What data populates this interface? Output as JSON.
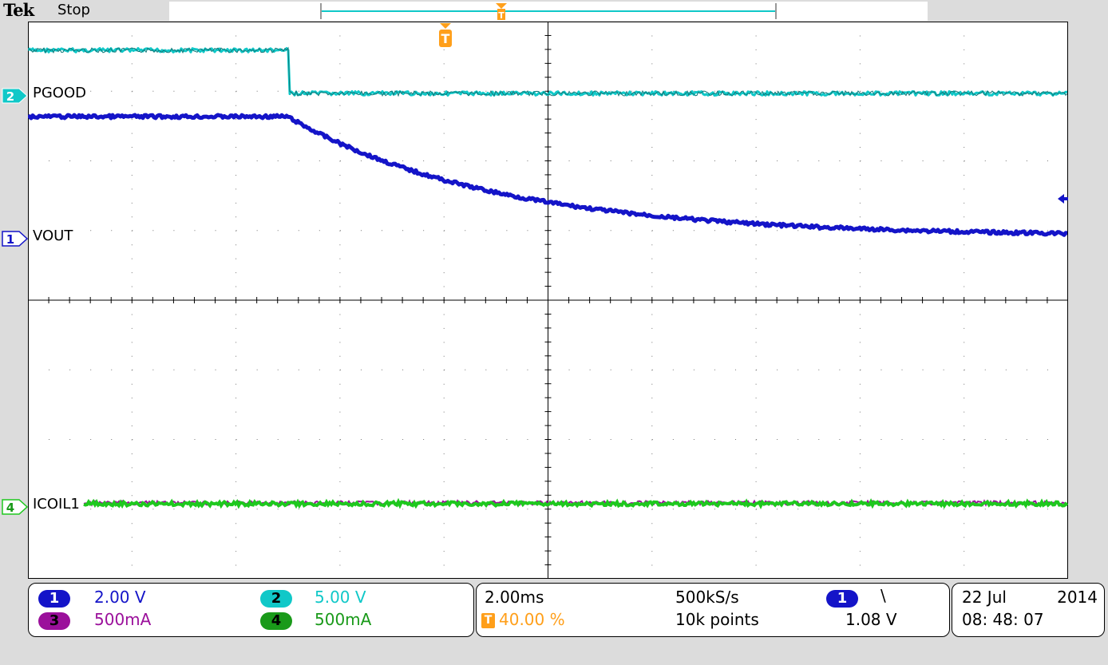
{
  "brand": "Tek",
  "acquisition_state": "Stop",
  "channels": [
    {
      "id": "1",
      "label": "VOUT",
      "color": "#1414c8",
      "scale": "2.00 V"
    },
    {
      "id": "2",
      "label": "PGOOD",
      "color": "#10c8c8",
      "scale": "5.00 V"
    },
    {
      "id": "3",
      "label": "",
      "color": "#9b109b",
      "scale": "500mA"
    },
    {
      "id": "4",
      "label": "ICOIL1",
      "color": "#1ec81e",
      "scale": "500mA"
    }
  ],
  "trigger": {
    "marker": "T",
    "position": "40.00 %",
    "color": "#ff9f1a",
    "source_channel": "1",
    "slope": "falling",
    "slope_symbol": "\\",
    "level": "1.08 V"
  },
  "horizontal": {
    "timebase": "2.00ms",
    "sample_rate": "500kS/s",
    "record_length": "10k points"
  },
  "datetime": {
    "date_day_month": "22 Jul",
    "year": "2014",
    "time": "08: 48: 07"
  },
  "display": {
    "grid_divisions_x": 10,
    "grid_divisions_y": 8
  }
}
